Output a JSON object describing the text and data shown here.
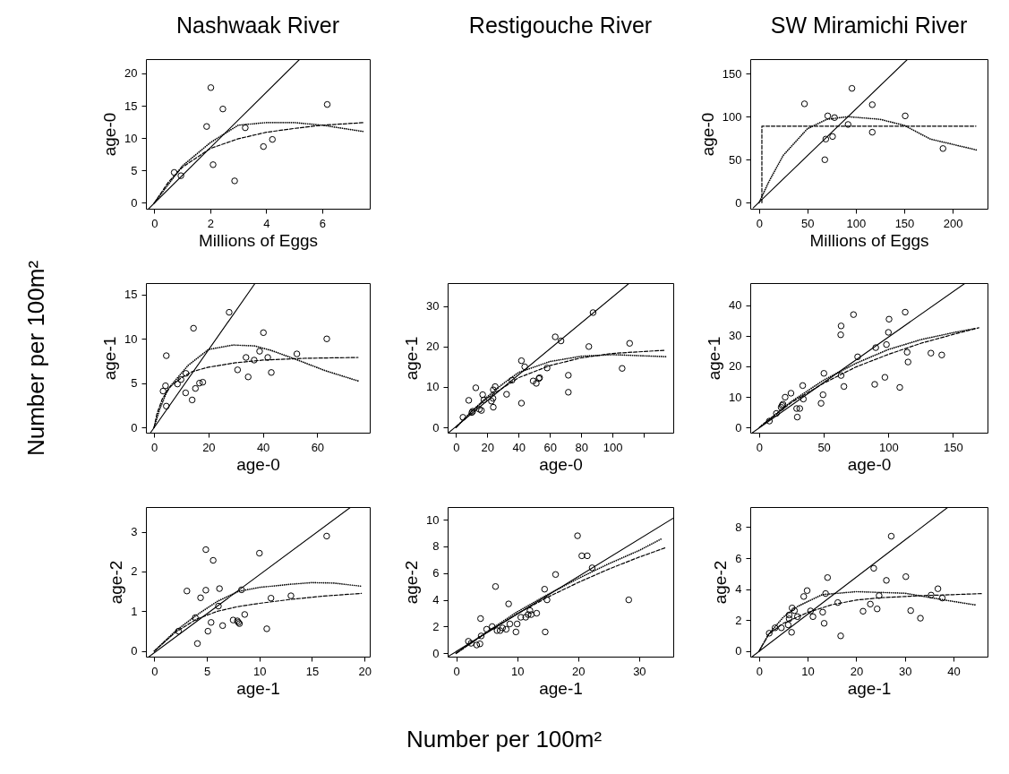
{
  "chart_data": [
    {
      "type": "scatter",
      "title": "Nashwaak River",
      "xlabel": "Millions of Eggs",
      "ylabel": "age-0",
      "annotations": [
        "Number per 100m²",
        "Number per 100m²"
      ],
      "xlim": [
        -0.3,
        7.7
      ],
      "ylim": [
        -0.9,
        22.2
      ],
      "xticks": [
        0,
        2,
        4,
        6
      ],
      "yticks": [
        0,
        5,
        10,
        15,
        20
      ],
      "series": [
        {
          "type": "scatter",
          "marker": "circle",
          "color": "#000000",
          "x": [
            0.71,
            0.95,
            2.02,
            2.45,
            1.87,
            3.25,
            2.1,
            2.87,
            3.9,
            4.22,
            6.18
          ],
          "values": [
            4.7,
            4.2,
            17.8,
            14.5,
            11.8,
            11.6,
            5.9,
            3.4,
            8.7,
            9.8,
            15.2
          ]
        },
        {
          "type": "line",
          "line_style": "solid",
          "color": "#000000",
          "x": [
            -0.2,
            5.2
          ],
          "values": [
            -0.9,
            22.2
          ]
        },
        {
          "type": "line",
          "line_style": "dashed",
          "color": "#000000",
          "x": [
            0,
            0.5,
            1,
            2,
            3,
            4,
            5,
            6,
            7.5
          ],
          "values": [
            0,
            3.2,
            5.5,
            8.4,
            9.9,
            10.9,
            11.5,
            12,
            12.4
          ]
        },
        {
          "type": "line",
          "line_style": "dotted",
          "color": "#000000",
          "x": [
            0,
            1,
            2,
            3,
            4,
            5,
            6,
            7.5
          ],
          "values": [
            0,
            5.7,
            9.3,
            12,
            12.4,
            12.4,
            12,
            11
          ]
        }
      ]
    },
    {
      "type": "scatter",
      "title": "SW Miramichi River",
      "xlabel": "Millions of Eggs",
      "ylabel": "age-0",
      "xlim": [
        -9,
        236
      ],
      "ylim": [
        -7,
        167
      ],
      "xticks": [
        0,
        50,
        100,
        150,
        200
      ],
      "yticks": [
        0,
        50,
        100,
        150
      ],
      "series": [
        {
          "type": "scatter",
          "marker": "circle",
          "color": "#000000",
          "x": [
            47,
            71,
            78,
            96,
            117,
            92,
            69,
            76,
            68,
            117,
            151,
            190
          ],
          "values": [
            115,
            101,
            99,
            133,
            114,
            91,
            74,
            77,
            50,
            82,
            101,
            63
          ]
        },
        {
          "type": "line",
          "line_style": "solid",
          "color": "#000000",
          "x": [
            -6,
            153.6
          ],
          "values": [
            -6,
            167
          ]
        },
        {
          "type": "line",
          "line_style": "dashed",
          "color": "#000000",
          "x": [
            3,
            3,
            224
          ],
          "values": [
            0,
            89,
            89
          ]
        },
        {
          "type": "line",
          "line_style": "dotted",
          "color": "#000000",
          "x": [
            0,
            10,
            25,
            50,
            70,
            92,
            125,
            150,
            177,
            226
          ],
          "values": [
            0,
            24,
            55,
            86,
            97,
            100,
            97,
            90,
            74,
            61
          ]
        }
      ]
    },
    {
      "type": "scatter",
      "xlabel": "age-0",
      "ylabel": "age-1",
      "xlim": [
        -3,
        79.3
      ],
      "ylim": [
        -0.6,
        16.3
      ],
      "xticks": [
        0,
        20,
        40,
        60
      ],
      "yticks": [
        0,
        5,
        10,
        15
      ],
      "series": [
        {
          "type": "scatter",
          "marker": "circle",
          "color": "#000000",
          "x": [
            4.5,
            3.3,
            4.2,
            4.5,
            8.6,
            9.9,
            11.7,
            11.6,
            14,
            14.5,
            15.2,
            16.7,
            17.9,
            27.6,
            30.7,
            34.6,
            33.8,
            36.8,
            38.8,
            40.2,
            41.8,
            43.1,
            52.5,
            63.5
          ],
          "values": [
            8.1,
            4.1,
            4.7,
            2.4,
            4.9,
            5.4,
            6.1,
            3.9,
            3.1,
            11.2,
            4.4,
            5,
            5.1,
            13,
            6.5,
            5.7,
            7.9,
            7.6,
            8.6,
            10.7,
            7.9,
            6.2,
            8.3,
            10
          ]
        },
        {
          "type": "line",
          "line_style": "solid",
          "color": "#000000",
          "x": [
            -1.3,
            37.2
          ],
          "values": [
            -0.6,
            16.3
          ]
        },
        {
          "type": "line",
          "line_style": "dashed",
          "color": "#000000",
          "x": [
            0,
            1,
            3,
            6,
            10,
            14,
            20,
            30,
            40,
            55,
            75
          ],
          "values": [
            0,
            1.5,
            3.2,
            4.6,
            5.6,
            6.3,
            6.8,
            7.3,
            7.6,
            7.8,
            7.9
          ]
        },
        {
          "type": "line",
          "line_style": "dotted",
          "color": "#000000",
          "x": [
            0,
            2,
            5,
            12.5,
            20,
            29,
            37,
            43,
            52,
            63,
            75.5
          ],
          "values": [
            0,
            2,
            4.3,
            7,
            8.8,
            9.3,
            9.2,
            8.7,
            7.7,
            6.4,
            5.2
          ]
        }
      ]
    },
    {
      "type": "scatter",
      "title": "Restigouche River",
      "xlabel": "age-0",
      "ylabel": "age-1",
      "xlim": [
        -5.4,
        138.9
      ],
      "ylim": [
        -1.3,
        35.7
      ],
      "xticks": [
        0,
        20,
        40,
        60,
        80,
        100,
        {
          "value": 120,
          "label": null
        }
      ],
      "yticks": [
        0,
        10,
        20,
        30
      ],
      "series": [
        {
          "type": "scatter",
          "marker": "circle",
          "color": "#000000",
          "x": [
            4.4,
            8.1,
            12.6,
            10.1,
            10.6,
            14.9,
            16.2,
            17,
            17.8,
            22.6,
            23.6,
            23.8,
            25,
            23.8,
            32.3,
            35.8,
            41.8,
            41.8,
            43.9,
            49.3,
            51.3,
            53,
            53.4,
            58.2,
            63.4,
            67.1,
            71.8,
            71.8,
            84.9,
            87.6,
            106.2,
            111
          ],
          "values": [
            2.5,
            6.7,
            9.8,
            3.7,
            4,
            4.5,
            4.2,
            8.1,
            6.8,
            6.5,
            7.2,
            9.3,
            10.1,
            5,
            8.2,
            11.7,
            16.5,
            6,
            15,
            11.5,
            10.9,
            12.1,
            12.3,
            14.7,
            22.4,
            21.4,
            12.9,
            8.7,
            20,
            28.4,
            14.6,
            20.8
          ]
        },
        {
          "type": "line",
          "line_style": "solid",
          "color": "#000000",
          "x": [
            -4.8,
            110.8
          ],
          "values": [
            -1.3,
            35.7
          ]
        },
        {
          "type": "line",
          "line_style": "dashed",
          "color": "#000000",
          "x": [
            0,
            10,
            20,
            40,
            60,
            80,
            100,
            134
          ],
          "values": [
            0,
            4,
            7.3,
            12.3,
            15.3,
            17.2,
            18.3,
            19.1
          ]
        },
        {
          "type": "line",
          "line_style": "dotted",
          "color": "#000000",
          "x": [
            0,
            10,
            20,
            30,
            40,
            60,
            80,
            100,
            134
          ],
          "values": [
            0,
            4,
            7.6,
            10.8,
            13.6,
            16.3,
            17.6,
            18,
            17.5
          ]
        }
      ]
    },
    {
      "type": "scatter",
      "xlabel": "age-0",
      "ylabel": "age-1",
      "xlim": [
        -6.9,
        176.7
      ],
      "ylim": [
        -1.7,
        47.2
      ],
      "xticks": [
        0,
        50,
        100,
        150
      ],
      "yticks": [
        0,
        10,
        20,
        30,
        40
      ],
      "series": [
        {
          "type": "scatter",
          "marker": "circle",
          "color": "#000000",
          "x": [
            7.9,
            13.3,
            17,
            17.7,
            18.4,
            20.1,
            24.6,
            29.5,
            29,
            31.4,
            33.7,
            34.2,
            47.9,
            49.4,
            50.1,
            63.4,
            63.1,
            63.4,
            65.6,
            73,
            76.2,
            89.4,
            90.2,
            97.3,
            98.5,
            100,
            100.5,
            108.8,
            113,
            114.5,
            115.2,
            132.9,
            141.3
          ],
          "values": [
            2.1,
            4.6,
            6.6,
            7.2,
            7.6,
            9.9,
            11.2,
            3.4,
            6.2,
            6.2,
            13.7,
            9.3,
            7.9,
            10.7,
            17.7,
            17,
            30.3,
            33.2,
            13.4,
            36.9,
            23.1,
            14.1,
            26.1,
            16.4,
            27.1,
            31.1,
            35.4,
            13.1,
            37.7,
            24.6,
            21.4,
            24.3,
            23.7
          ]
        },
        {
          "type": "line",
          "line_style": "solid",
          "color": "#000000",
          "x": [
            -5.2,
            159.5
          ],
          "values": [
            -1.7,
            47.2
          ]
        },
        {
          "type": "line",
          "line_style": "dashed",
          "color": "#000000",
          "x": [
            0,
            25,
            50,
            75,
            100,
            125,
            150,
            170
          ],
          "values": [
            0,
            8.2,
            14.5,
            19.8,
            23.9,
            27.5,
            30.4,
            32.6
          ]
        },
        {
          "type": "line",
          "line_style": "dotted",
          "color": "#000000",
          "x": [
            2,
            25,
            50,
            75,
            100,
            125,
            150,
            168
          ],
          "values": [
            0.7,
            8.5,
            15.5,
            21,
            25.5,
            28.7,
            31,
            32.4
          ]
        }
      ]
    },
    {
      "type": "scatter",
      "xlabel": "age-1",
      "ylabel": "age-2",
      "xlim": [
        -0.8,
        20.5
      ],
      "ylim": [
        -0.14,
        3.62
      ],
      "xticks": [
        0,
        5,
        10,
        15,
        20
      ],
      "yticks": [
        0,
        1,
        2,
        3
      ],
      "series": [
        {
          "type": "scatter",
          "marker": "circle",
          "color": "#000000",
          "x": [
            2.3,
            3.1,
            3.9,
            4.1,
            4.4,
            4.9,
            4.9,
            5.1,
            5.4,
            5.6,
            6.1,
            6.2,
            6.5,
            7.5,
            7.9,
            8,
            8.1,
            8.3,
            8.6,
            10,
            10.7,
            11.1,
            13,
            16.4
          ],
          "values": [
            0.5,
            1.51,
            0.84,
            0.19,
            1.34,
            1.53,
            2.55,
            0.5,
            0.72,
            2.28,
            1.13,
            1.57,
            0.64,
            0.78,
            0.76,
            0.72,
            0.69,
            1.54,
            0.92,
            2.46,
            0.56,
            1.33,
            1.39,
            2.89
          ]
        },
        {
          "type": "line",
          "line_style": "solid",
          "color": "#000000",
          "x": [
            -0.5,
            18.7
          ],
          "values": [
            -0.14,
            3.62
          ]
        },
        {
          "type": "line",
          "line_style": "dashed",
          "color": "#000000",
          "x": [
            0,
            2,
            4,
            6,
            8,
            10,
            13,
            16,
            19.7
          ],
          "values": [
            0,
            0.47,
            0.8,
            1,
            1.12,
            1.2,
            1.3,
            1.38,
            1.45
          ]
        },
        {
          "type": "line",
          "line_style": "dotted",
          "color": "#000000",
          "x": [
            0,
            2,
            4,
            6,
            8,
            10,
            13,
            15,
            17,
            19.7
          ],
          "values": [
            0,
            0.5,
            0.9,
            1.25,
            1.5,
            1.6,
            1.68,
            1.72,
            1.71,
            1.63
          ]
        }
      ]
    },
    {
      "type": "scatter",
      "xlabel": "age-1",
      "ylabel": "age-2",
      "xlim": [
        -1.4,
        35.6
      ],
      "ylim": [
        -0.25,
        10.95
      ],
      "xticks": [
        0,
        10,
        20,
        30
      ],
      "yticks": [
        0,
        2,
        4,
        6,
        8,
        10
      ],
      "series": [
        {
          "type": "scatter",
          "marker": "circle",
          "color": "#000000",
          "x": [
            2,
            2.45,
            3.36,
            3.9,
            4.1,
            4,
            5,
            5.9,
            6.45,
            6.7,
            7.2,
            7.6,
            8.2,
            8.6,
            8.8,
            9.8,
            10,
            10.6,
            11.4,
            11.8,
            12.1,
            12.3,
            13.2,
            14.5,
            14.6,
            14.9,
            16.3,
            19.9,
            20.6,
            21.5,
            22.3,
            28.3
          ],
          "values": [
            0.9,
            0.75,
            0.62,
            0.71,
            1.3,
            2.6,
            1.8,
            2,
            5,
            1.7,
            1.7,
            1.9,
            1.8,
            3.7,
            2.2,
            1.6,
            2.2,
            2.7,
            2.7,
            2.9,
            3.2,
            2.9,
            3,
            4.8,
            1.6,
            4,
            5.9,
            8.8,
            7.3,
            7.3,
            6.4,
            4
          ]
        },
        {
          "type": "line",
          "line_style": "solid",
          "color": "#000000",
          "x": [
            -1.36,
            35.6
          ],
          "values": [
            -0.25,
            10.12
          ]
        },
        {
          "type": "line",
          "line_style": "dashed",
          "color": "#000000",
          "x": [
            0,
            5,
            10,
            15,
            20,
            25,
            30,
            34.3
          ],
          "values": [
            0,
            1.55,
            2.95,
            4.2,
            5.3,
            6.3,
            7.2,
            7.9
          ]
        },
        {
          "type": "line",
          "line_style": "dotted",
          "color": "#000000",
          "x": [
            0,
            5,
            10,
            15,
            20,
            25,
            30,
            33.8
          ],
          "values": [
            0,
            1.6,
            3.1,
            4.4,
            5.6,
            6.7,
            7.7,
            8.6
          ]
        }
      ]
    },
    {
      "type": "scatter",
      "xlabel": "age-1",
      "ylabel": "age-2",
      "xlim": [
        -1.8,
        47
      ],
      "ylim": [
        -0.35,
        9.3
      ],
      "xticks": [
        0,
        10,
        20,
        30,
        40
      ],
      "yticks": [
        0,
        2,
        4,
        6,
        8
      ],
      "series": [
        {
          "type": "scatter",
          "marker": "circle",
          "color": "#000000",
          "x": [
            2.1,
            3.3,
            4.6,
            6,
            6.2,
            6.2,
            6.8,
            6.7,
            7.3,
            7.9,
            9.2,
            9.9,
            10.6,
            11.1,
            13.1,
            13.4,
            13.7,
            14.1,
            16.2,
            16.8,
            21.4,
            22.9,
            23.6,
            24.3,
            24.7,
            26.2,
            27.2,
            30.2,
            31.2,
            33.2,
            35.4,
            36.8,
            37.7
          ],
          "values": [
            1.16,
            1.51,
            1.51,
            1.7,
            2.09,
            2.34,
            2.79,
            1.22,
            2.62,
            2.23,
            3.53,
            3.91,
            2.6,
            2.23,
            2.52,
            1.8,
            3.72,
            4.75,
            3.14,
            0.99,
            2.58,
            3.04,
            5.35,
            2.73,
            3.59,
            4.57,
            7.42,
            4.81,
            2.62,
            2.13,
            3.62,
            4.03,
            3.43
          ]
        },
        {
          "type": "line",
          "line_style": "solid",
          "color": "#000000",
          "x": [
            -1.4,
            38.9
          ],
          "values": [
            -0.35,
            9.3
          ]
        },
        {
          "type": "line",
          "line_style": "dashed",
          "color": "#000000",
          "x": [
            0,
            2,
            5,
            10,
            15,
            20,
            25,
            30,
            35,
            40,
            46
          ],
          "values": [
            0,
            1.1,
            1.8,
            2.5,
            3,
            3.3,
            3.45,
            3.53,
            3.6,
            3.65,
            3.72
          ]
        },
        {
          "type": "line",
          "line_style": "dotted",
          "color": "#000000",
          "x": [
            0,
            2,
            5,
            8,
            13,
            20,
            30,
            39,
            44.8
          ],
          "values": [
            0,
            1.1,
            2.2,
            2.9,
            3.65,
            3.84,
            3.74,
            3.26,
            2.97
          ]
        }
      ]
    }
  ]
}
